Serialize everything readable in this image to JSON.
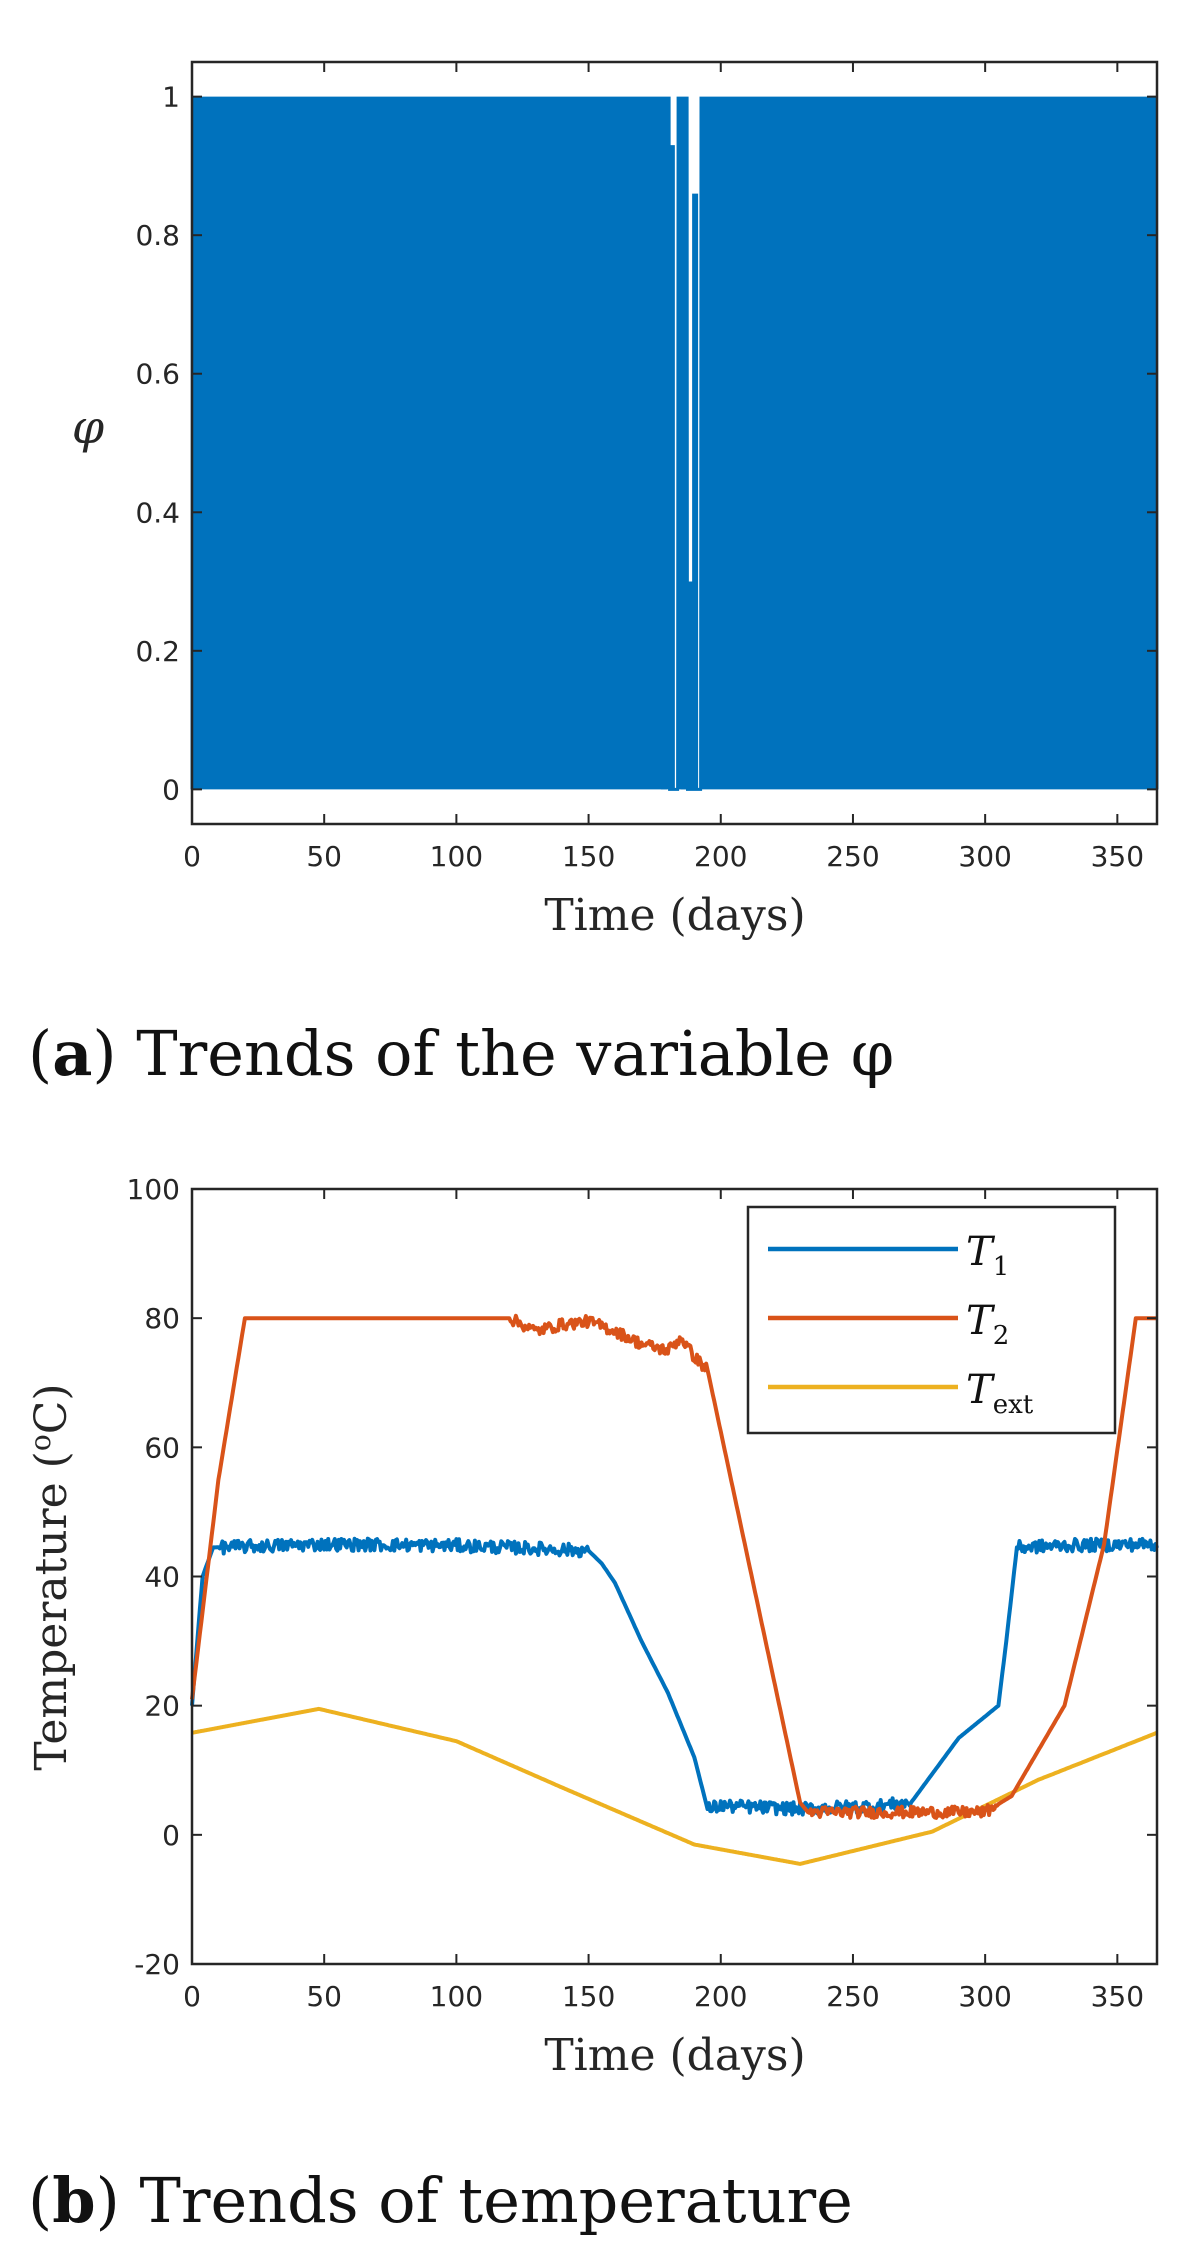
{
  "chart_data": [
    {
      "id": "a",
      "type": "line",
      "title": "",
      "xlabel": "Time (days)",
      "ylabel": "φ",
      "xlim": [
        0,
        365
      ],
      "ylim": [
        -0.05,
        1.05
      ],
      "xticks": [
        0,
        50,
        100,
        150,
        200,
        250,
        300,
        350
      ],
      "xtick_labels": [
        "0",
        "50",
        "100",
        "150",
        "200",
        "250",
        "300",
        "350"
      ],
      "yticks": [
        0,
        0.2,
        0.4,
        0.6,
        0.8,
        1
      ],
      "ytick_labels": [
        "0",
        "0.2",
        "0.4",
        "0.6",
        "0.8",
        "1"
      ],
      "grid": false,
      "series": [
        {
          "name": "φ",
          "color": "#0072BD",
          "description_values": "rapid switching between 0 and 1 throughout the year; gaps near days 180-192",
          "x": [
            0,
            60,
            72,
            92,
            135,
            175,
            178,
            181,
            184,
            186,
            188,
            190,
            192,
            195,
            250,
            300,
            365
          ],
          "values": [
            0,
            1,
            0,
            1,
            0,
            1,
            0.74,
            0.93,
            0.06,
            0.9,
            0.3,
            0.86,
            0,
            1,
            0,
            1,
            0
          ]
        }
      ],
      "caption_letter": "a",
      "caption_text": "Trends of the variable φ"
    },
    {
      "id": "b",
      "type": "line",
      "title": "",
      "xlabel": "Time (days)",
      "ylabel": "Temperature (°C)",
      "ylabel_main": "Temperature (",
      "ylabel_unit_sup": "o",
      "ylabel_unit": "C)",
      "xlim": [
        0,
        365
      ],
      "ylim": [
        -20,
        100
      ],
      "xticks": [
        0,
        50,
        100,
        150,
        200,
        250,
        300,
        350
      ],
      "xtick_labels": [
        "0",
        "50",
        "100",
        "150",
        "200",
        "250",
        "300",
        "350"
      ],
      "yticks": [
        -20,
        0,
        20,
        40,
        60,
        80,
        100
      ],
      "ytick_labels": [
        "-20",
        "0",
        "20",
        "40",
        "60",
        "80",
        "100"
      ],
      "grid": false,
      "legend_position": "top-right",
      "series": [
        {
          "name": "T1",
          "label_main": "T",
          "label_sub": "1",
          "color": "#0072BD",
          "x": [
            0,
            4,
            8,
            50,
            100,
            120,
            150,
            155,
            160,
            170,
            180,
            190,
            195,
            200,
            230,
            260,
            272,
            290,
            305,
            308,
            312,
            330,
            365
          ],
          "values": [
            20,
            40,
            44.5,
            45,
            44.8,
            44.5,
            44,
            42,
            39,
            30,
            22,
            12,
            4,
            4.5,
            4,
            4.5,
            5,
            15,
            20,
            30,
            44.5,
            44.8,
            45
          ]
        },
        {
          "name": "T2",
          "label_main": "T",
          "label_sub": "2",
          "color": "#D95319",
          "x": [
            0,
            10,
            20,
            50,
            100,
            120,
            130,
            140,
            150,
            160,
            170,
            180,
            185,
            190,
            195,
            230,
            233,
            260,
            300,
            310,
            330,
            345,
            357,
            365
          ],
          "values": [
            21,
            55,
            80,
            80,
            80,
            80,
            78,
            79,
            79.5,
            78,
            76,
            75,
            77,
            74,
            72,
            5,
            3.5,
            3.5,
            3.5,
            6,
            20,
            45,
            80,
            80
          ]
        },
        {
          "name": "Text",
          "label_main": "T",
          "label_sub": "ext",
          "color": "#EDB120",
          "function": "sinusoid: mean 7.5, amplitude 12, peak 19.5 at day 48, minimum -4.5 at day 230",
          "x": [
            0,
            48,
            100,
            139,
            190,
            230,
            280,
            320,
            365
          ],
          "values": [
            15.8,
            19.5,
            14.5,
            7.5,
            -1.5,
            -4.5,
            0.5,
            8.5,
            15.8
          ]
        }
      ],
      "caption_letter": "b",
      "caption_text": "Trends of temperature"
    }
  ]
}
